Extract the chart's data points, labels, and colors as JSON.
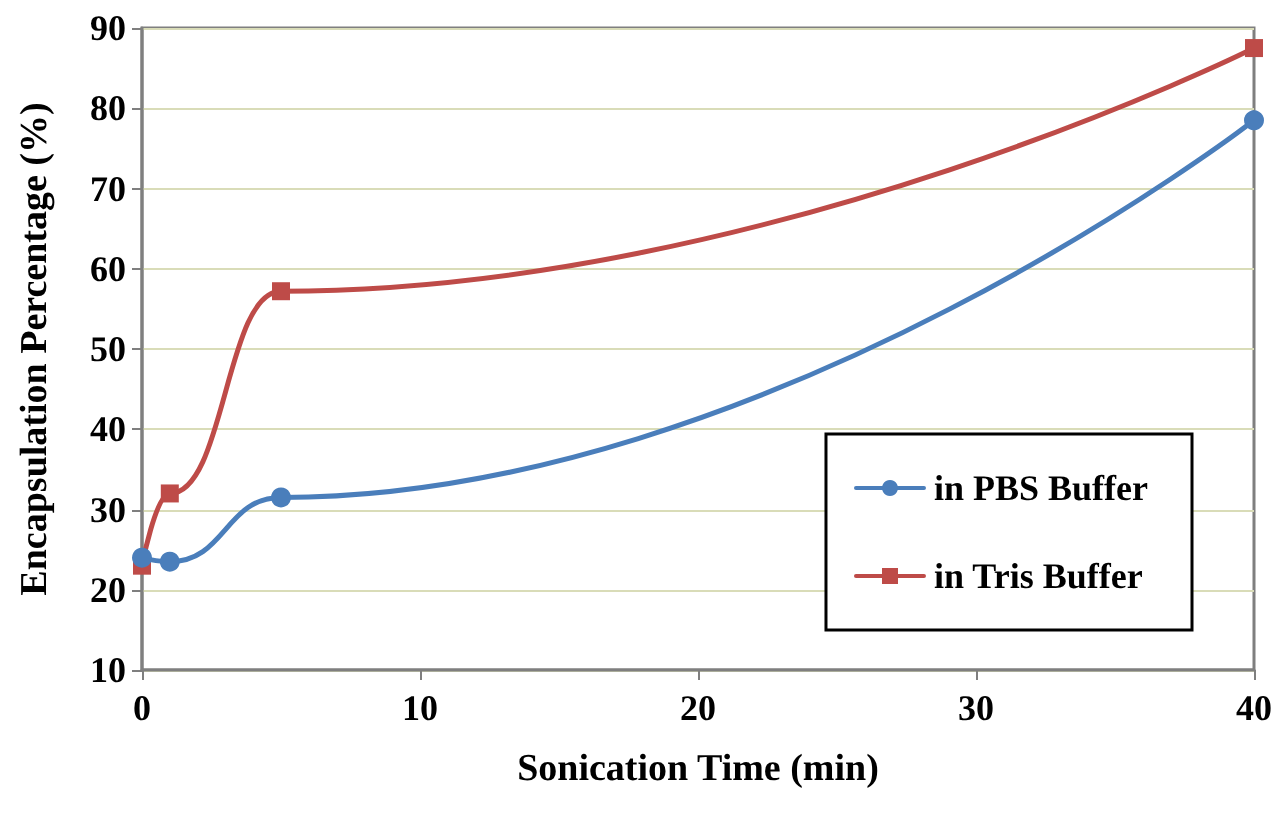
{
  "chart_data": {
    "type": "line",
    "xlabel": "Sonication Time (min)",
    "ylabel": "Encapsulation Percentage (%)",
    "series": [
      {
        "name": "in PBS Buffer",
        "color": "#4a7ebb",
        "marker": "circle",
        "x": [
          0,
          1,
          5,
          40
        ],
        "values": [
          24,
          23.5,
          31.5,
          78.5
        ]
      },
      {
        "name": "in Tris Buffer",
        "color": "#be4b48",
        "marker": "square",
        "x": [
          0,
          1,
          5,
          40
        ],
        "values": [
          23,
          32,
          57.2,
          87.5
        ]
      }
    ],
    "xlim": [
      0,
      40
    ],
    "xticks": [
      0,
      10,
      20,
      30,
      40
    ],
    "ylim": [
      10,
      90
    ],
    "yticks": [
      10,
      20,
      30,
      40,
      50,
      60,
      70,
      80,
      90
    ],
    "grid": "y",
    "legend": "bottom right",
    "line_style": "solid"
  }
}
